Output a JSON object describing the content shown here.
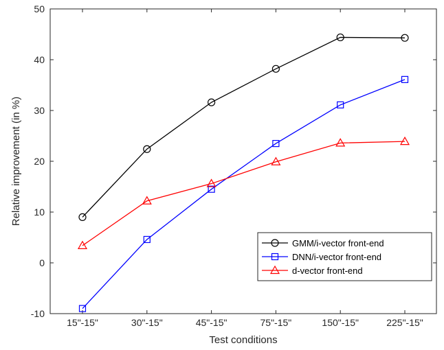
{
  "chart_data": {
    "type": "line",
    "title": "",
    "xlabel": "Test conditions",
    "ylabel": "Relative improvement (in %)",
    "categories": [
      "15\"-15\"",
      "30\"-15\"",
      "45\"-15\"",
      "75\"-15\"",
      "150\"-15\"",
      "225\"-15\""
    ],
    "ylim": [
      -10,
      50
    ],
    "yticks": [
      -10,
      0,
      10,
      20,
      30,
      40,
      50
    ],
    "grid": false,
    "legend_position": "lower-right",
    "series": [
      {
        "name": "GMM/i-vector front-end",
        "color": "#000000",
        "marker": "circle",
        "values": [
          9.0,
          22.4,
          31.6,
          38.2,
          44.4,
          44.3
        ]
      },
      {
        "name": "DNN/i-vector front-end",
        "color": "#0000ff",
        "marker": "square",
        "values": [
          -9.0,
          4.6,
          14.5,
          23.5,
          31.1,
          36.1
        ]
      },
      {
        "name": "d-vector front-end",
        "color": "#ff0000",
        "marker": "triangle",
        "values": [
          3.4,
          12.2,
          15.6,
          19.9,
          23.6,
          23.9
        ]
      }
    ]
  }
}
